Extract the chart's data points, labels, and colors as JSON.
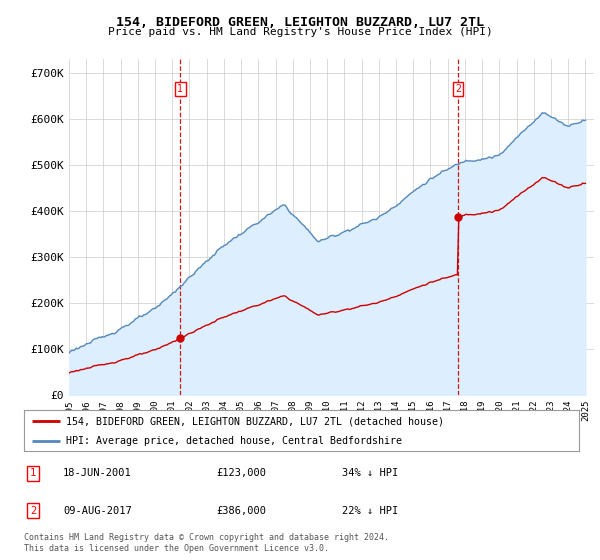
{
  "title": "154, BIDEFORD GREEN, LEIGHTON BUZZARD, LU7 2TL",
  "subtitle": "Price paid vs. HM Land Registry's House Price Index (HPI)",
  "legend_line1": "154, BIDEFORD GREEN, LEIGHTON BUZZARD, LU7 2TL (detached house)",
  "legend_line2": "HPI: Average price, detached house, Central Bedfordshire",
  "footnote1": "Contains HM Land Registry data © Crown copyright and database right 2024.",
  "footnote2": "This data is licensed under the Open Government Licence v3.0.",
  "transaction1_label": "1",
  "transaction1_date": "18-JUN-2001",
  "transaction1_price": "£123,000",
  "transaction1_hpi": "34% ↓ HPI",
  "transaction2_label": "2",
  "transaction2_date": "09-AUG-2017",
  "transaction2_price": "£386,000",
  "transaction2_hpi": "22% ↓ HPI",
  "house_color": "#cc0000",
  "hpi_color": "#5588bb",
  "hpi_fill_color": "#ddeeff",
  "vline_color": "#cc0000",
  "background_color": "#ffffff",
  "plot_bg_color": "#ffffff",
  "ylim": [
    0,
    730000
  ],
  "yticks": [
    0,
    100000,
    200000,
    300000,
    400000,
    500000,
    600000,
    700000
  ],
  "ytick_labels": [
    "£0",
    "£100K",
    "£200K",
    "£300K",
    "£400K",
    "£500K",
    "£600K",
    "£700K"
  ],
  "transaction1_x": 2001.46,
  "transaction1_y": 123000,
  "transaction2_x": 2017.6,
  "transaction2_y": 386000,
  "xlim_left": 1995.0,
  "xlim_right": 2025.5
}
